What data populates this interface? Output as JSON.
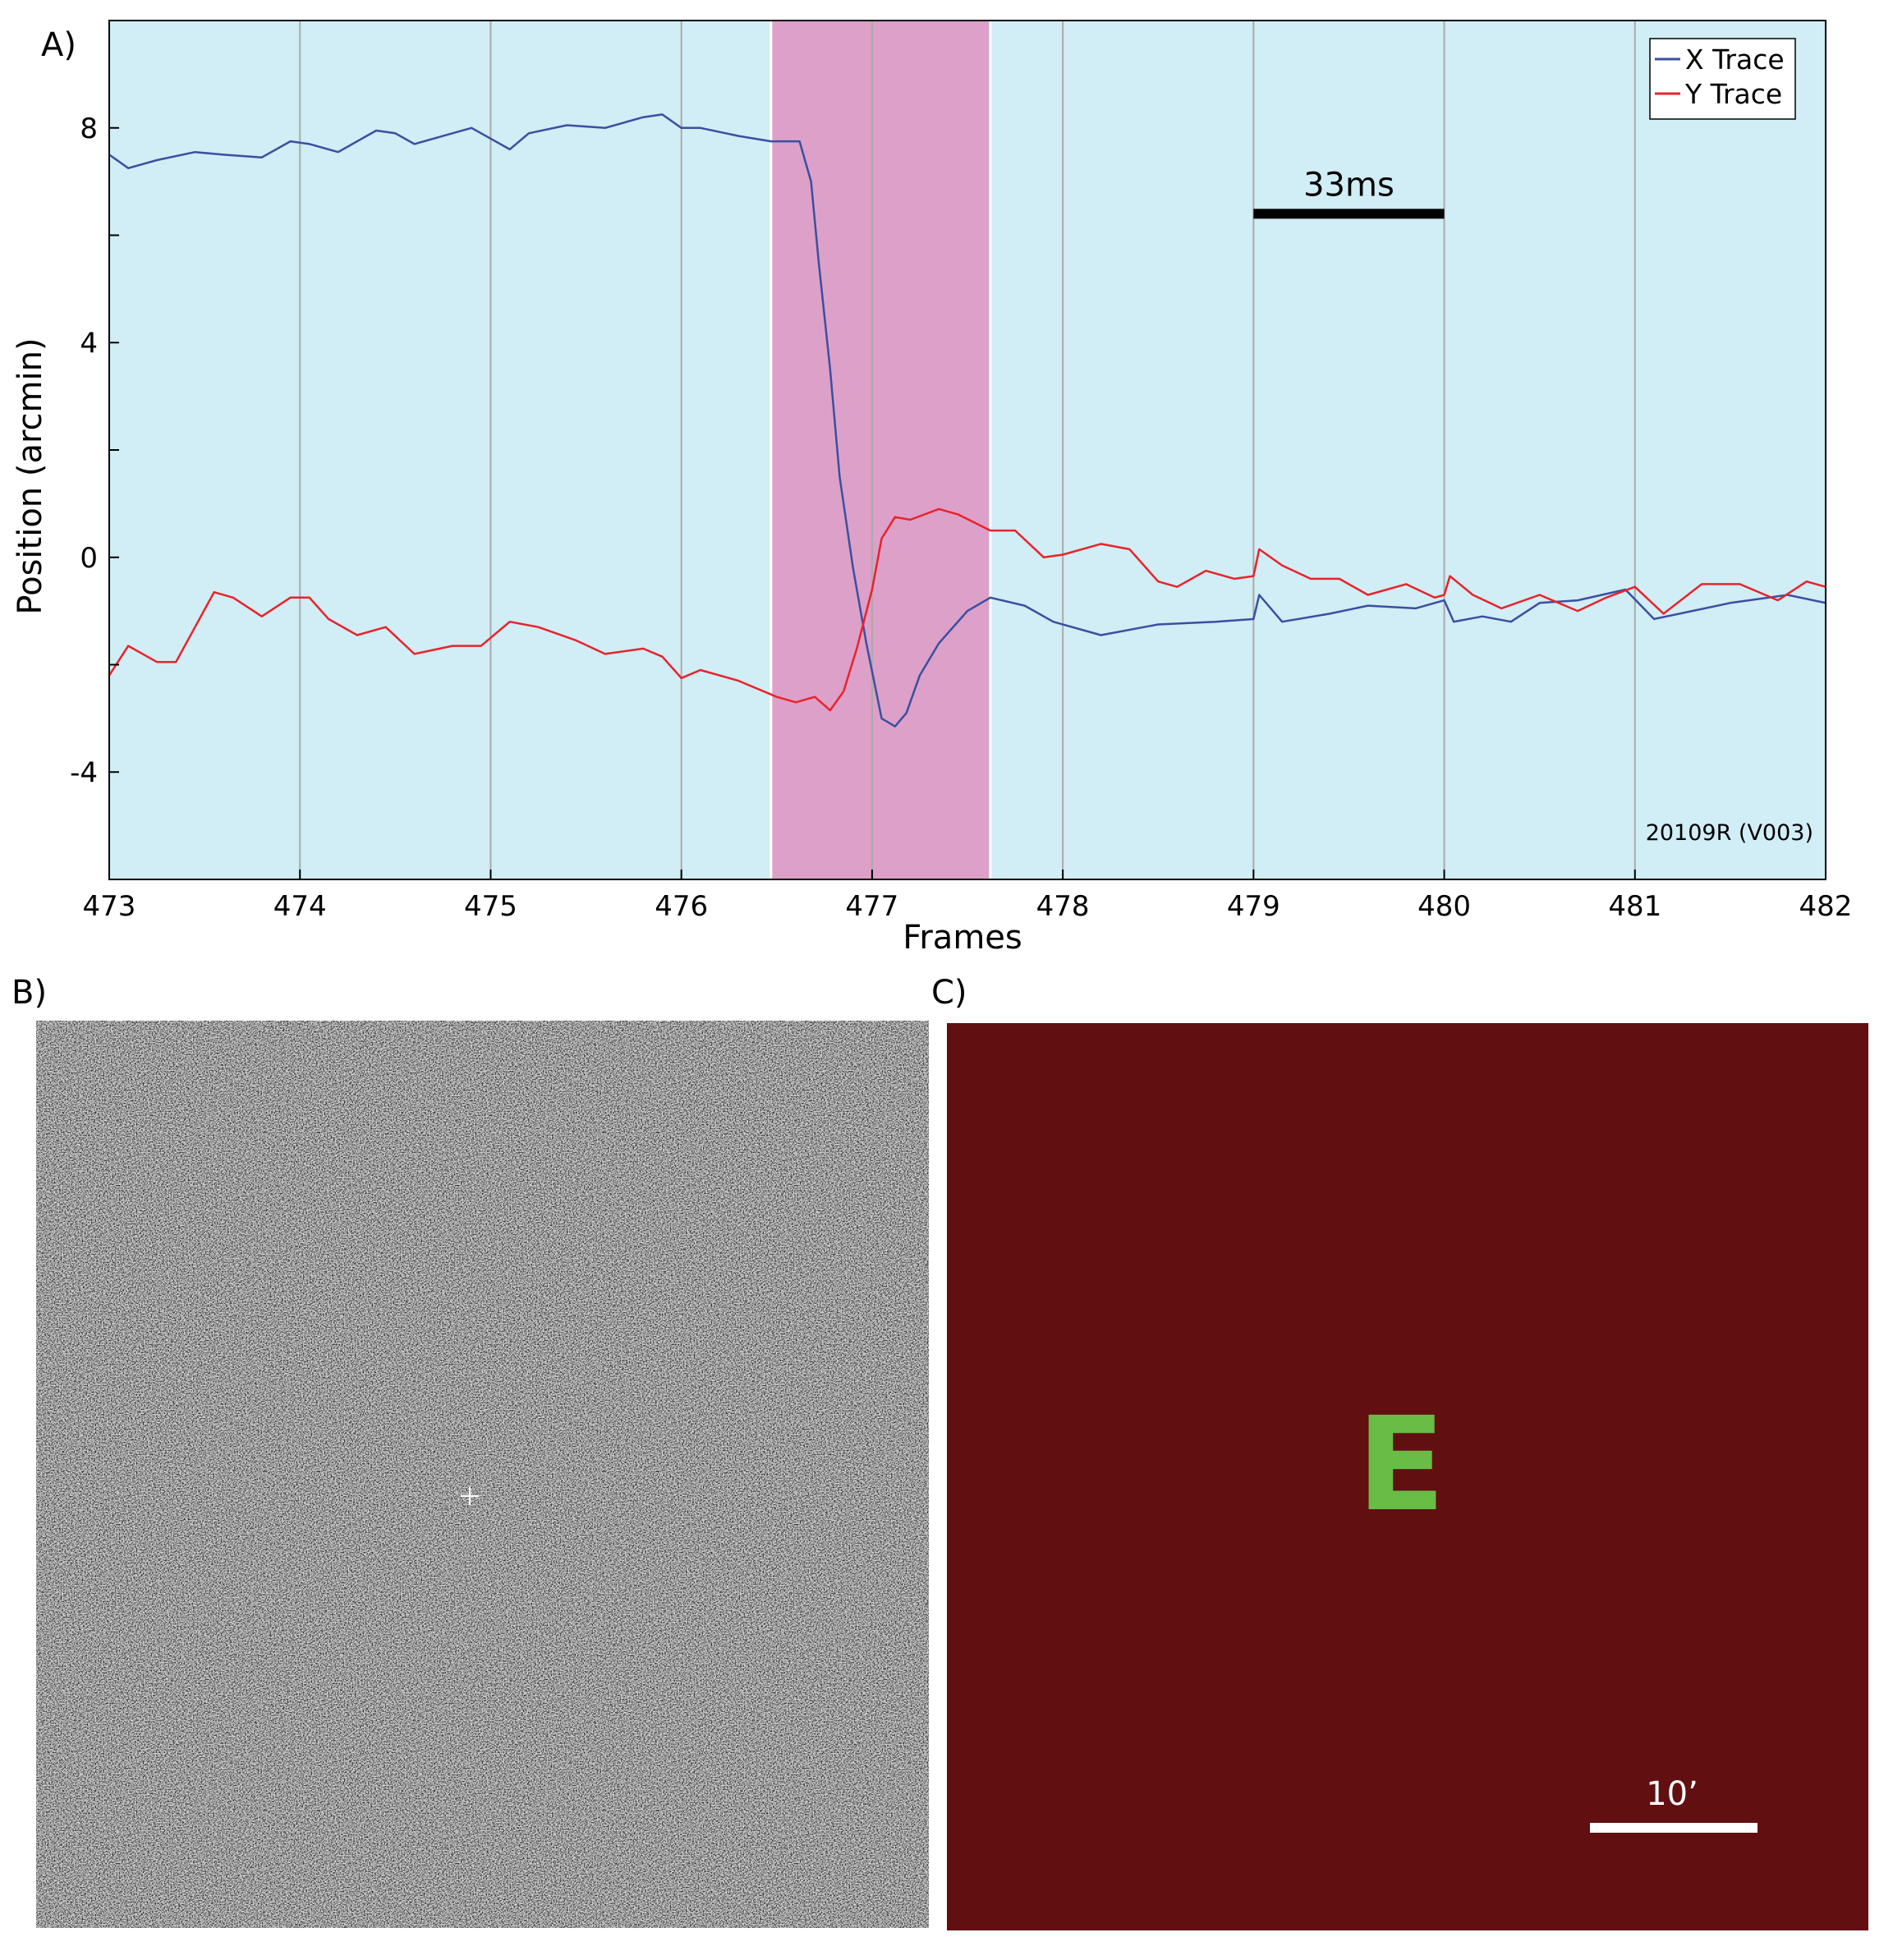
{
  "panels": {
    "a_label": "A)",
    "b_label": "B)",
    "c_label": "C)"
  },
  "chart_data": {
    "type": "line",
    "xlabel": "Frames",
    "ylabel": "Position (arcmin)",
    "xlim": [
      473,
      482
    ],
    "ylim": [
      -6,
      10
    ],
    "xticks": [
      473,
      474,
      475,
      476,
      477,
      478,
      479,
      480,
      481,
      482
    ],
    "yticks_labeled": [
      -4,
      0,
      4,
      8
    ],
    "yticks_minor": [
      -6,
      -2,
      2,
      6,
      10
    ],
    "grid": "vertical",
    "background_color": "#d1edf5",
    "highlight": {
      "x_start": 476.47,
      "x_end": 477.62,
      "color": "#dda0c9"
    },
    "legend": {
      "position": "top-right",
      "entries": [
        "X Trace",
        "Y Trace"
      ]
    },
    "scale_bar": {
      "label": "33ms",
      "x_start": 479,
      "x_end": 480,
      "y": 6.4
    },
    "corner_note": "20109R (V003)",
    "series": [
      {
        "name": "X Trace",
        "color": "#3b4fa0",
        "x": [
          473.0,
          473.1,
          473.25,
          473.45,
          473.6,
          473.8,
          473.95,
          474.05,
          474.2,
          474.4,
          474.5,
          474.6,
          474.75,
          474.9,
          475.0,
          475.1,
          475.2,
          475.4,
          475.6,
          475.8,
          475.9,
          476.0,
          476.1,
          476.3,
          476.47,
          476.62,
          476.68,
          476.72,
          476.78,
          476.83,
          476.9,
          476.97,
          477.05,
          477.12,
          477.18,
          477.25,
          477.35,
          477.5,
          477.62,
          477.8,
          477.95,
          478.2,
          478.5,
          478.8,
          479.0,
          479.03,
          479.15,
          479.4,
          479.6,
          479.85,
          480.0,
          480.05,
          480.2,
          480.35,
          480.5,
          480.7,
          480.95,
          481.1,
          481.3,
          481.5,
          481.8,
          482.0
        ],
        "y": [
          7.5,
          7.25,
          7.4,
          7.55,
          7.5,
          7.45,
          7.75,
          7.7,
          7.55,
          7.95,
          7.9,
          7.7,
          7.85,
          8.0,
          7.8,
          7.6,
          7.9,
          8.05,
          8.0,
          8.2,
          8.25,
          8.0,
          8.0,
          7.85,
          7.75,
          7.75,
          7.0,
          5.5,
          3.5,
          1.5,
          -0.2,
          -1.6,
          -3.0,
          -3.15,
          -2.9,
          -2.2,
          -1.6,
          -1.0,
          -0.75,
          -0.9,
          -1.2,
          -1.45,
          -1.25,
          -1.2,
          -1.15,
          -0.7,
          -1.2,
          -1.05,
          -0.9,
          -0.95,
          -0.8,
          -1.2,
          -1.1,
          -1.2,
          -0.85,
          -0.8,
          -0.6,
          -1.15,
          -1.0,
          -0.85,
          -0.7,
          -0.85
        ]
      },
      {
        "name": "Y Trace",
        "color": "#e8232b",
        "x": [
          473.0,
          473.1,
          473.25,
          473.35,
          473.55,
          473.65,
          473.8,
          473.95,
          474.05,
          474.15,
          474.3,
          474.45,
          474.6,
          474.8,
          474.95,
          475.1,
          475.25,
          475.45,
          475.6,
          475.8,
          475.9,
          476.0,
          476.1,
          476.3,
          476.5,
          476.6,
          476.7,
          476.78,
          476.85,
          476.92,
          477.0,
          477.05,
          477.12,
          477.2,
          477.35,
          477.45,
          477.62,
          477.75,
          477.9,
          478.0,
          478.2,
          478.35,
          478.5,
          478.6,
          478.75,
          478.9,
          479.0,
          479.03,
          479.15,
          479.3,
          479.45,
          479.6,
          479.8,
          479.95,
          480.0,
          480.03,
          480.15,
          480.3,
          480.5,
          480.7,
          480.85,
          481.0,
          481.15,
          481.35,
          481.55,
          481.75,
          481.9,
          482.0
        ],
        "y": [
          -2.2,
          -1.65,
          -1.95,
          -1.95,
          -0.65,
          -0.75,
          -1.1,
          -0.75,
          -0.75,
          -1.15,
          -1.45,
          -1.3,
          -1.8,
          -1.65,
          -1.65,
          -1.2,
          -1.3,
          -1.55,
          -1.8,
          -1.7,
          -1.85,
          -2.25,
          -2.1,
          -2.3,
          -2.6,
          -2.7,
          -2.6,
          -2.85,
          -2.5,
          -1.7,
          -0.6,
          0.35,
          0.75,
          0.7,
          0.9,
          0.8,
          0.5,
          0.5,
          0.0,
          0.05,
          0.25,
          0.15,
          -0.45,
          -0.55,
          -0.25,
          -0.4,
          -0.35,
          0.15,
          -0.15,
          -0.4,
          -0.4,
          -0.7,
          -0.5,
          -0.75,
          -0.7,
          -0.35,
          -0.7,
          -0.95,
          -0.7,
          -1.0,
          -0.75,
          -0.55,
          -1.05,
          -0.5,
          -0.5,
          -0.8,
          -0.45,
          -0.55
        ]
      }
    ]
  },
  "panel_c": {
    "background_color": "#620f12",
    "letter": "E",
    "letter_color": "#69bc45",
    "scale_label": "10’"
  }
}
